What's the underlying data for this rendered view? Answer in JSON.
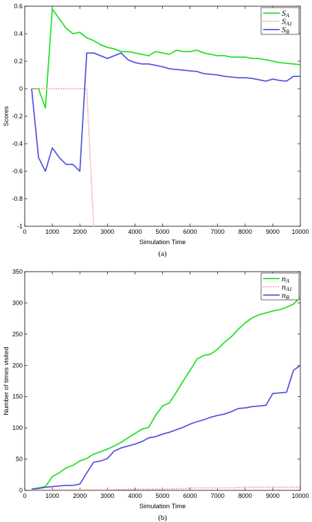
{
  "chart_data": [
    {
      "type": "line",
      "caption": "(a)",
      "xlabel": "Simulation Time",
      "ylabel": "Scores",
      "xlim": [
        0,
        10000
      ],
      "ylim": [
        -1,
        0.6
      ],
      "xticks": [
        0,
        1000,
        2000,
        3000,
        4000,
        5000,
        6000,
        7000,
        8000,
        9000,
        10000
      ],
      "yticks": [
        -1,
        -0.8,
        -0.6,
        -0.4,
        -0.2,
        0,
        0.2,
        0.4,
        0.6
      ],
      "yticklabels": [
        "-1",
        "-0.8",
        "-0.6",
        "-0.4",
        "-0.2",
        "0",
        "0.2",
        "0.4",
        "0.6"
      ],
      "grid": false,
      "legend": "top-right",
      "series": [
        {
          "name": "S_A",
          "label_main": "S",
          "label_sub": "A",
          "color": "#22e022",
          "dash": "none",
          "x": [
            250,
            500,
            750,
            1000,
            1250,
            1500,
            1750,
            2000,
            2250,
            2500,
            2750,
            3000,
            3250,
            3500,
            3750,
            4000,
            4250,
            4500,
            4750,
            5000,
            5250,
            5500,
            5750,
            6000,
            6250,
            6500,
            6750,
            7000,
            7250,
            7500,
            7750,
            8000,
            8250,
            8500,
            8750,
            9000,
            9250,
            9500,
            9750,
            10000
          ],
          "y": [
            0,
            0,
            -0.14,
            0.58,
            0.51,
            0.44,
            0.4,
            0.41,
            0.37,
            0.35,
            0.32,
            0.3,
            0.29,
            0.27,
            0.27,
            0.26,
            0.25,
            0.24,
            0.27,
            0.26,
            0.25,
            0.28,
            0.27,
            0.27,
            0.28,
            0.26,
            0.25,
            0.24,
            0.24,
            0.23,
            0.23,
            0.23,
            0.22,
            0.22,
            0.21,
            0.2,
            0.19,
            0.185,
            0.18,
            0.175
          ]
        },
        {
          "name": "S_A1",
          "label_main": "S",
          "label_sub": "A1",
          "color": "#f0a8a8",
          "dash": "2,1.5",
          "x": [
            250,
            500,
            1000,
            1500,
            2000,
            2250,
            2500
          ],
          "y": [
            0,
            0,
            0,
            0,
            0,
            0,
            -1
          ]
        },
        {
          "name": "S_B",
          "label_main": "S",
          "label_sub": "B",
          "color": "#5555dd",
          "dash": "none",
          "x": [
            250,
            500,
            750,
            1000,
            1250,
            1500,
            1750,
            2000,
            2250,
            2500,
            2750,
            3000,
            3250,
            3500,
            3750,
            4000,
            4250,
            4500,
            4750,
            5000,
            5250,
            5500,
            5750,
            6000,
            6250,
            6500,
            6750,
            7000,
            7250,
            7500,
            7750,
            8000,
            8250,
            8500,
            8750,
            9000,
            9250,
            9500,
            9750,
            10000
          ],
          "y": [
            0,
            -0.5,
            -0.6,
            -0.43,
            -0.5,
            -0.55,
            -0.55,
            -0.6,
            0.26,
            0.26,
            0.24,
            0.22,
            0.24,
            0.26,
            0.21,
            0.19,
            0.18,
            0.18,
            0.17,
            0.16,
            0.145,
            0.14,
            0.135,
            0.13,
            0.125,
            0.11,
            0.105,
            0.1,
            0.09,
            0.085,
            0.08,
            0.08,
            0.075,
            0.065,
            0.055,
            0.07,
            0.06,
            0.055,
            0.09,
            0.09
          ]
        }
      ]
    },
    {
      "type": "line",
      "caption": "(b)",
      "xlabel": "Simulation Time",
      "ylabel": "Number of times visited",
      "xlim": [
        0,
        10000
      ],
      "ylim": [
        0,
        350
      ],
      "xticks": [
        0,
        1000,
        2000,
        3000,
        4000,
        5000,
        6000,
        7000,
        8000,
        9000,
        10000
      ],
      "yticks": [
        0,
        50,
        100,
        150,
        200,
        250,
        300,
        350
      ],
      "yticklabels": [
        "0",
        "50",
        "100",
        "150",
        "200",
        "250",
        "300",
        "350"
      ],
      "grid": false,
      "legend": "top-right",
      "series": [
        {
          "name": "n_A",
          "label_main": "n",
          "label_sub": "A",
          "color": "#22e022",
          "dash": "none",
          "x": [
            250,
            500,
            750,
            1000,
            1250,
            1500,
            1750,
            2000,
            2250,
            2500,
            2750,
            3000,
            3250,
            3500,
            3750,
            4000,
            4250,
            4500,
            4750,
            5000,
            5250,
            5500,
            5750,
            6000,
            6250,
            6500,
            6750,
            7000,
            7250,
            7500,
            7750,
            8000,
            8250,
            8500,
            8750,
            9000,
            9250,
            9500,
            9750,
            10000
          ],
          "y": [
            2,
            4,
            6,
            22,
            28,
            36,
            40,
            47,
            51,
            58,
            62,
            66,
            71,
            77,
            84,
            91,
            98,
            101,
            120,
            135,
            140,
            157,
            175,
            192,
            210,
            216,
            218,
            226,
            237,
            246,
            258,
            268,
            276,
            281,
            284,
            287,
            289,
            293,
            298,
            309
          ]
        },
        {
          "name": "n_A1",
          "label_main": "n",
          "label_sub": "A1",
          "color": "#f0a8a8",
          "dash": "2,1.5",
          "x": [
            250,
            1000,
            2000,
            2500,
            3000,
            4000,
            5000,
            5800,
            6000,
            7000,
            7500,
            8000,
            9000,
            10000
          ],
          "y": [
            1,
            1,
            1,
            1,
            1,
            2,
            2,
            3,
            4,
            4,
            4,
            5,
            5,
            5
          ]
        },
        {
          "name": "n_B",
          "label_main": "n",
          "label_sub": "B",
          "color": "#5555dd",
          "dash": "none",
          "x": [
            250,
            500,
            750,
            1000,
            1250,
            1500,
            1750,
            2000,
            2250,
            2500,
            2750,
            3000,
            3250,
            3500,
            3750,
            4000,
            4250,
            4500,
            4750,
            5000,
            5250,
            5500,
            5750,
            6000,
            6250,
            6500,
            6750,
            7000,
            7250,
            7500,
            7750,
            8000,
            8250,
            8500,
            8750,
            9000,
            9250,
            9500,
            9750,
            10000
          ],
          "y": [
            2,
            3,
            5,
            6,
            7,
            8,
            8,
            10,
            28,
            45,
            47,
            51,
            63,
            68,
            71,
            74,
            78,
            84,
            86,
            90,
            93,
            97,
            101,
            106,
            110,
            113,
            117,
            120,
            122,
            126,
            131,
            132,
            134,
            135,
            136,
            155,
            156,
            157,
            192,
            200
          ]
        }
      ]
    }
  ]
}
